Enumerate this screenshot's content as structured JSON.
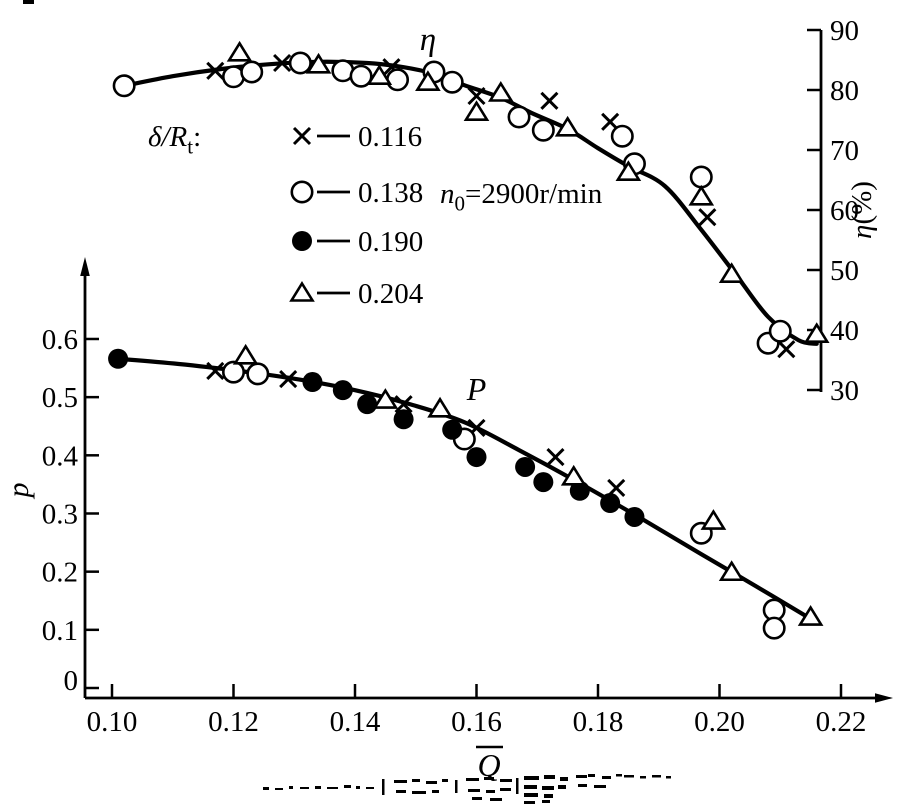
{
  "figure": {
    "background": "#ffffff",
    "ink": "#000000"
  },
  "chart_data": {
    "type": "scatter",
    "title": "",
    "grid": false,
    "legend_position": "upper-left-inside",
    "x_axis": {
      "label": "Q",
      "overline": true,
      "min": 0.1,
      "max": 0.22,
      "tick_values": [
        0.1,
        0.12,
        0.14,
        0.16,
        0.18,
        0.2,
        0.22
      ],
      "tick_labels": [
        "0.10",
        "0.12",
        "0.14",
        "0.16",
        "0.18",
        "0.20",
        "0.22"
      ]
    },
    "left_axis": {
      "label": "p",
      "min": 0,
      "max": 0.65,
      "tick_values": [
        0,
        0.1,
        0.2,
        0.3,
        0.4,
        0.5,
        0.6
      ],
      "tick_labels": [
        "0",
        "0.1",
        "0.2",
        "0.3",
        "0.4",
        "0.5",
        "0.6"
      ]
    },
    "right_axis": {
      "label_parts": [
        {
          "t": "η",
          "italic": true
        },
        {
          "t": "(%)"
        }
      ],
      "min": 30,
      "max": 90,
      "tick_values": [
        90,
        80,
        70,
        60,
        50,
        40,
        30
      ],
      "tick_labels": [
        "90",
        "80",
        "70",
        "60",
        "50",
        "40",
        "30"
      ]
    },
    "legend": {
      "title_parts": [
        {
          "t": "δ/R",
          "italic": true
        },
        {
          "t": "t",
          "sub": true
        },
        {
          "t": ":"
        }
      ],
      "items": [
        {
          "marker": "cross",
          "label": "0.116"
        },
        {
          "marker": "circle-open",
          "label": "0.138"
        },
        {
          "marker": "circle-filled",
          "label": "0.190"
        },
        {
          "marker": "triangle-open",
          "label": "0.204"
        }
      ]
    },
    "annotations": [
      {
        "id": "eta-curve-label",
        "parts": [
          {
            "t": "η",
            "italic": true
          }
        ],
        "curve": "eta",
        "q": 0.152,
        "v": 86.7,
        "anchor": "middle",
        "size": 33
      },
      {
        "id": "P-curve-label",
        "parts": [
          {
            "t": "P",
            "italic": true
          }
        ],
        "curve": "P",
        "q": 0.16,
        "v": 0.495,
        "anchor": "middle",
        "size": 32
      },
      {
        "id": "speed-note",
        "parts": [
          {
            "t": "n",
            "italic": true
          },
          {
            "t": "0",
            "sub": true
          },
          {
            "t": "=2900r/min"
          }
        ],
        "curve": "eta",
        "q": 0.154,
        "v": 61.2,
        "anchor": "start",
        "size": 29
      }
    ],
    "series": [
      {
        "name": "eta-delta-0.116",
        "curve": "eta",
        "delta_Rt": "0.116",
        "marker": "cross",
        "points": [
          [
            0.117,
            83.2
          ],
          [
            0.128,
            84.5
          ],
          [
            0.146,
            83.8
          ],
          [
            0.16,
            79.0
          ],
          [
            0.172,
            78.2
          ],
          [
            0.182,
            74.7
          ],
          [
            0.198,
            58.8
          ],
          [
            0.211,
            36.8
          ]
        ]
      },
      {
        "name": "eta-delta-0.138",
        "curve": "eta",
        "delta_Rt": "0.138",
        "marker": "circle-open",
        "points": [
          [
            0.102,
            80.7
          ],
          [
            0.12,
            82.2
          ],
          [
            0.123,
            83.0
          ],
          [
            0.131,
            84.5
          ],
          [
            0.138,
            83.2
          ],
          [
            0.141,
            82.3
          ],
          [
            0.147,
            81.7
          ],
          [
            0.153,
            83.0
          ],
          [
            0.156,
            81.3
          ],
          [
            0.167,
            75.5
          ],
          [
            0.171,
            73.3
          ],
          [
            0.184,
            72.3
          ],
          [
            0.186,
            67.7
          ],
          [
            0.197,
            65.5
          ],
          [
            0.208,
            37.8
          ],
          [
            0.21,
            39.8
          ]
        ]
      },
      {
        "name": "eta-delta-0.204",
        "curve": "eta",
        "delta_Rt": "0.204",
        "marker": "triangle-open",
        "points": [
          [
            0.121,
            86.2
          ],
          [
            0.134,
            84.2
          ],
          [
            0.144,
            82.3
          ],
          [
            0.152,
            81.3
          ],
          [
            0.16,
            76.3
          ],
          [
            0.164,
            79.5
          ],
          [
            0.175,
            73.7
          ],
          [
            0.185,
            66.3
          ],
          [
            0.197,
            62.2
          ],
          [
            0.202,
            49.3
          ],
          [
            0.216,
            39.3
          ]
        ]
      },
      {
        "name": "P-delta-0.116",
        "curve": "P",
        "delta_Rt": "0.116",
        "marker": "cross",
        "points": [
          [
            0.117,
            0.545
          ],
          [
            0.129,
            0.531
          ],
          [
            0.148,
            0.488
          ],
          [
            0.16,
            0.447
          ],
          [
            0.173,
            0.397
          ],
          [
            0.183,
            0.344
          ]
        ]
      },
      {
        "name": "P-delta-0.138",
        "curve": "P",
        "delta_Rt": "0.138",
        "marker": "circle-open",
        "points": [
          [
            0.12,
            0.543
          ],
          [
            0.124,
            0.54
          ],
          [
            0.158,
            0.428
          ],
          [
            0.197,
            0.266
          ],
          [
            0.209,
            0.134
          ],
          [
            0.209,
            0.103
          ]
        ]
      },
      {
        "name": "P-delta-0.190",
        "curve": "P",
        "delta_Rt": "0.190",
        "marker": "circle-filled",
        "points": [
          [
            0.101,
            0.566
          ],
          [
            0.133,
            0.526
          ],
          [
            0.138,
            0.512
          ],
          [
            0.142,
            0.488
          ],
          [
            0.148,
            0.462
          ],
          [
            0.156,
            0.444
          ],
          [
            0.16,
            0.397
          ],
          [
            0.168,
            0.38
          ],
          [
            0.171,
            0.354
          ],
          [
            0.177,
            0.339
          ],
          [
            0.182,
            0.318
          ],
          [
            0.186,
            0.294
          ]
        ]
      },
      {
        "name": "P-delta-0.204",
        "curve": "P",
        "delta_Rt": "0.204",
        "marker": "triangle-open",
        "points": [
          [
            0.122,
            0.571
          ],
          [
            0.145,
            0.495
          ],
          [
            0.154,
            0.48
          ],
          [
            0.176,
            0.363
          ],
          [
            0.199,
            0.287
          ],
          [
            0.202,
            0.199
          ],
          [
            0.215,
            0.122
          ]
        ]
      }
    ],
    "trend_curves": [
      {
        "name": "eta-trend-curve",
        "curve": "eta",
        "points": [
          [
            0.102,
            80.7
          ],
          [
            0.11,
            82.3
          ],
          [
            0.118,
            83.5
          ],
          [
            0.126,
            84.3
          ],
          [
            0.134,
            84.7
          ],
          [
            0.142,
            84.5
          ],
          [
            0.148,
            83.8
          ],
          [
            0.153,
            82.7
          ],
          [
            0.158,
            80.8
          ],
          [
            0.164,
            78.7
          ],
          [
            0.169,
            76.2
          ],
          [
            0.175,
            73.5
          ],
          [
            0.18,
            70.3
          ],
          [
            0.185,
            67.3
          ],
          [
            0.191,
            64.0
          ],
          [
            0.197,
            56.7
          ],
          [
            0.203,
            48.8
          ],
          [
            0.208,
            42.2
          ],
          [
            0.213,
            38.3
          ],
          [
            0.216,
            37.7
          ]
        ]
      },
      {
        "name": "P-trend-curve",
        "curve": "P",
        "points": [
          [
            0.101,
            0.566
          ],
          [
            0.111,
            0.557
          ],
          [
            0.121,
            0.545
          ],
          [
            0.131,
            0.53
          ],
          [
            0.14,
            0.512
          ],
          [
            0.149,
            0.488
          ],
          [
            0.158,
            0.457
          ],
          [
            0.167,
            0.409
          ],
          [
            0.176,
            0.358
          ],
          [
            0.187,
            0.292
          ],
          [
            0.197,
            0.23
          ],
          [
            0.206,
            0.175
          ],
          [
            0.215,
            0.119
          ]
        ]
      }
    ]
  }
}
